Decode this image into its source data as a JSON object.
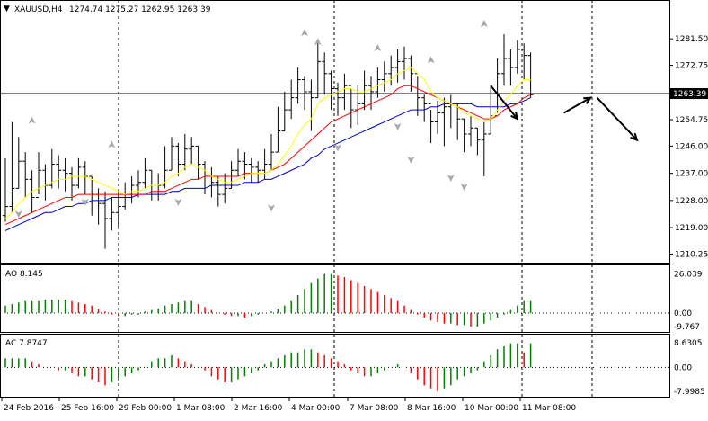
{
  "window": {
    "symbol_label": "XAUUSD,H4",
    "ohlc_label": "1274.74 1275.27 1262.95 1263.39",
    "collapse_glyph": "▼",
    "current_price_label": "1263.39"
  },
  "colors": {
    "background": "#ffffff",
    "candle": "#000000",
    "ma_fast": "#ffff00",
    "ma_mid": "#ff0000",
    "ma_slow": "#0000cc",
    "osc_up": "#008000",
    "osc_down": "#ff0000",
    "fractal": "#a9a9a9",
    "grid_separator": "#000000"
  },
  "indicators": {
    "ao": {
      "label": "AO 8.145",
      "ticks": [
        "26.039",
        "0.00",
        "-9.767"
      ]
    },
    "ac": {
      "label": "AC 7.8747",
      "ticks": [
        "8.6305",
        "0.00",
        "-7.9985"
      ]
    }
  },
  "chart_data": [
    {
      "type": "candlestick",
      "title": "XAUUSD,H4",
      "ylim": [
        1208.0,
        1289.0
      ],
      "y_ticks": [
        1210.25,
        1219.0,
        1228.0,
        1237.0,
        1246.0,
        1254.75,
        1263.39,
        1272.75,
        1281.5
      ],
      "y_tick_labels": [
        "1210.25",
        "1219.00",
        "1228.00",
        "1237.00",
        "1246.00",
        "1254.75",
        "1263.39",
        "1272.75",
        "1281.50"
      ],
      "x_labels": [
        "24 Feb 2016",
        "25 Feb 16:00",
        "29 Feb 00:00",
        "1 Mar 08:00",
        "2 Mar 16:00",
        "4 Mar 00:00",
        "7 Mar 08:00",
        "8 Mar 16:00",
        "10 Mar 00:00",
        "11 Mar 08:00"
      ],
      "last_price": 1263.39,
      "close": [
        1226,
        1232,
        1241,
        1235,
        1229,
        1238,
        1233,
        1240,
        1238,
        1237,
        1233,
        1239,
        1236,
        1230,
        1227,
        1222,
        1224,
        1226,
        1230,
        1233,
        1234,
        1238,
        1233,
        1233,
        1238,
        1246,
        1240,
        1245,
        1246,
        1240,
        1236,
        1234,
        1230,
        1232,
        1238,
        1241,
        1240,
        1239,
        1238,
        1240,
        1244,
        1251,
        1258,
        1262,
        1268,
        1264,
        1262,
        1274,
        1270,
        1265,
        1262,
        1266,
        1258,
        1260,
        1266,
        1264,
        1268,
        1270,
        1272,
        1274,
        1275,
        1270,
        1262,
        1260,
        1254,
        1257,
        1259,
        1260,
        1255,
        1250,
        1252,
        1248,
        1250,
        1256,
        1270,
        1275,
        1272,
        1278,
        1276,
        1263
      ],
      "high": [
        1242,
        1254,
        1249,
        1244,
        1238,
        1244,
        1240,
        1245,
        1243,
        1242,
        1239,
        1242,
        1241,
        1236,
        1232,
        1231,
        1229,
        1231,
        1234,
        1236,
        1238,
        1242,
        1238,
        1237,
        1246,
        1249,
        1247,
        1250,
        1249,
        1246,
        1241,
        1239,
        1236,
        1237,
        1241,
        1245,
        1244,
        1242,
        1241,
        1245,
        1250,
        1259,
        1264,
        1268,
        1272,
        1269,
        1268,
        1280,
        1277,
        1271,
        1267,
        1270,
        1265,
        1266,
        1271,
        1269,
        1272,
        1274,
        1276,
        1278,
        1279,
        1276,
        1269,
        1263,
        1258,
        1261,
        1262,
        1263,
        1260,
        1255,
        1256,
        1252,
        1254,
        1266,
        1275,
        1283,
        1278,
        1281,
        1280,
        1277
      ],
      "low": [
        1221,
        1224,
        1232,
        1229,
        1224,
        1230,
        1228,
        1232,
        1232,
        1231,
        1228,
        1232,
        1230,
        1223,
        1220,
        1212,
        1218,
        1219,
        1225,
        1227,
        1229,
        1232,
        1228,
        1228,
        1232,
        1238,
        1236,
        1238,
        1240,
        1235,
        1230,
        1229,
        1226,
        1227,
        1232,
        1236,
        1235,
        1234,
        1234,
        1235,
        1238,
        1244,
        1251,
        1255,
        1260,
        1258,
        1251,
        1262,
        1263,
        1258,
        1256,
        1258,
        1252,
        1253,
        1258,
        1258,
        1262,
        1264,
        1266,
        1267,
        1268,
        1264,
        1256,
        1254,
        1247,
        1250,
        1246,
        1252,
        1248,
        1244,
        1246,
        1243,
        1236,
        1250,
        1257,
        1266,
        1266,
        1270,
        1268,
        1262
      ],
      "ma_fast": [
        1222,
        1224,
        1227,
        1229,
        1231,
        1232,
        1233,
        1234,
        1235,
        1235,
        1236,
        1236,
        1236,
        1235,
        1234,
        1233,
        1232,
        1231,
        1230,
        1231,
        1231,
        1232,
        1233,
        1233,
        1234,
        1236,
        1237,
        1239,
        1240,
        1239,
        1238,
        1236,
        1235,
        1234,
        1234,
        1235,
        1236,
        1237,
        1237,
        1237,
        1238,
        1240,
        1243,
        1246,
        1250,
        1253,
        1255,
        1260,
        1262,
        1263,
        1264,
        1265,
        1265,
        1264,
        1264,
        1265,
        1266,
        1267,
        1268,
        1270,
        1271,
        1272,
        1270,
        1268,
        1264,
        1262,
        1261,
        1260,
        1259,
        1257,
        1256,
        1255,
        1254,
        1255,
        1258,
        1261,
        1263,
        1266,
        1268,
        1268
      ],
      "ma_mid": [
        1220,
        1221,
        1222,
        1223,
        1224,
        1225,
        1226,
        1227,
        1228,
        1229,
        1229,
        1230,
        1230,
        1230,
        1230,
        1230,
        1230,
        1230,
        1230,
        1230,
        1230,
        1230,
        1231,
        1231,
        1231,
        1232,
        1233,
        1234,
        1235,
        1235,
        1236,
        1236,
        1236,
        1236,
        1236,
        1236,
        1237,
        1237,
        1237,
        1237,
        1238,
        1239,
        1240,
        1242,
        1244,
        1246,
        1248,
        1250,
        1252,
        1254,
        1255,
        1256,
        1257,
        1258,
        1259,
        1260,
        1261,
        1262,
        1263,
        1265,
        1266,
        1266,
        1265,
        1264,
        1263,
        1262,
        1261,
        1260,
        1259,
        1258,
        1257,
        1256,
        1255,
        1255,
        1256,
        1258,
        1259,
        1260,
        1262,
        1263
      ],
      "ma_slow": [
        1218,
        1219,
        1220,
        1221,
        1222,
        1223,
        1224,
        1224,
        1225,
        1226,
        1226,
        1227,
        1227,
        1228,
        1228,
        1228,
        1229,
        1229,
        1229,
        1229,
        1230,
        1230,
        1230,
        1230,
        1230,
        1231,
        1231,
        1232,
        1232,
        1232,
        1232,
        1233,
        1233,
        1233,
        1233,
        1233,
        1234,
        1234,
        1234,
        1235,
        1235,
        1236,
        1237,
        1238,
        1239,
        1240,
        1242,
        1243,
        1245,
        1246,
        1247,
        1248,
        1249,
        1250,
        1251,
        1252,
        1253,
        1254,
        1255,
        1256,
        1257,
        1258,
        1258,
        1258,
        1259,
        1259,
        1260,
        1260,
        1260,
        1260,
        1260,
        1259,
        1259,
        1259,
        1259,
        1259,
        1260,
        1260,
        1261,
        1262
      ],
      "fractals_up": [
        [
          4,
          1254
        ],
        [
          16,
          1246
        ],
        [
          45,
          1283
        ],
        [
          47,
          1280
        ],
        [
          56,
          1278
        ],
        [
          64,
          1274
        ],
        [
          72,
          1286
        ]
      ],
      "fractals_down": [
        [
          2,
          1224
        ],
        [
          12,
          1228
        ],
        [
          26,
          1228
        ],
        [
          40,
          1226
        ],
        [
          50,
          1246
        ],
        [
          59,
          1253
        ],
        [
          61,
          1242
        ],
        [
          67,
          1236
        ],
        [
          69,
          1233
        ]
      ],
      "arrows": [
        {
          "from": [
            73,
            1266
          ],
          "to": [
            77,
            1255
          ]
        },
        {
          "from": [
            84,
            1257
          ],
          "to": [
            88,
            1262
          ]
        },
        {
          "from": [
            89,
            1262
          ],
          "to": [
            95,
            1248
          ]
        }
      ]
    },
    {
      "type": "bar",
      "title": "AO 8.145",
      "ylim": [
        -12.0,
        30.0
      ],
      "y_ticks": [
        26.039,
        0.0,
        -9.767
      ],
      "values": [
        5,
        6,
        7,
        8,
        8,
        8,
        9,
        9,
        9,
        9,
        8,
        7,
        6,
        5,
        3,
        1,
        -1,
        -2,
        -2,
        -1,
        -1,
        1,
        2,
        3,
        5,
        6,
        7,
        8,
        8,
        6,
        4,
        2,
        0,
        -1,
        -2,
        -2,
        -3,
        -2,
        -1,
        0,
        1,
        3,
        5,
        8,
        12,
        16,
        20,
        23,
        26,
        26,
        25,
        24,
        22,
        20,
        18,
        16,
        14,
        12,
        10,
        8,
        5,
        2,
        -1,
        -3,
        -5,
        -6,
        -7,
        -7,
        -8,
        -8,
        -9,
        -9,
        -7,
        -5,
        -3,
        -1,
        2,
        5,
        8,
        8
      ]
    },
    {
      "type": "bar",
      "title": "AC 7.8747",
      "ylim": [
        -9.5,
        10.0
      ],
      "y_ticks": [
        8.6305,
        0.0,
        -7.9985
      ],
      "values": [
        3,
        3,
        3,
        3,
        2,
        1,
        0,
        0,
        -1,
        -1,
        -2,
        -3,
        -3,
        -4,
        -5,
        -6,
        -5,
        -4,
        -3,
        -2,
        -1,
        0,
        2,
        3,
        3,
        4,
        3,
        2,
        1,
        0,
        -1,
        -3,
        -4,
        -5,
        -5,
        -4,
        -3,
        -2,
        -1,
        1,
        2,
        3,
        4,
        5,
        5,
        6,
        6,
        5,
        4,
        3,
        2,
        1,
        -1,
        -2,
        -3,
        -3,
        -2,
        -1,
        0,
        1,
        0,
        -2,
        -4,
        -6,
        -7,
        -8,
        -7,
        -6,
        -4,
        -3,
        -2,
        -1,
        2,
        4,
        6,
        7,
        8,
        8,
        5,
        8
      ]
    }
  ]
}
